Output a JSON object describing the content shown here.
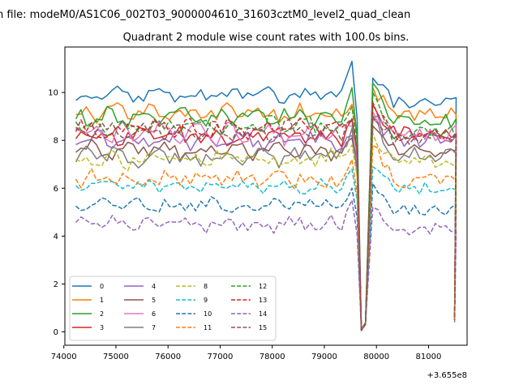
{
  "chart_data": {
    "type": "line",
    "suptitle": "n file: modeM0/AS1C06_002T03_9000004610_31603cztM0_level2_quad_clean",
    "title": "Quadrant 2 module wise count rates with 100.0s bins.",
    "xlabel": "",
    "ylabel": "",
    "x_offset_label": "+3.655e8",
    "xlim": [
      74020,
      81740
    ],
    "ylim": [
      -0.56,
      11.9
    ],
    "x_ticks": [
      74000,
      75000,
      76000,
      77000,
      78000,
      79000,
      80000,
      81000
    ],
    "x_tick_labels": [
      "74000",
      "75000",
      "76000",
      "77000",
      "78000",
      "79000",
      "80000",
      "81000"
    ],
    "y_ticks": [
      0,
      2,
      4,
      6,
      8,
      10
    ],
    "y_tick_labels": [
      "0",
      "2",
      "4",
      "6",
      "8",
      "10"
    ],
    "grid": false,
    "legend_position": "lower-left",
    "x_start": 74230,
    "x_step": 100,
    "pre_gap_points": 54,
    "post_gap_start": 79930,
    "post_gap_points": 17,
    "series": [
      {
        "name": "0",
        "color": "#1f77b4",
        "dash": "solid",
        "level": 9.9,
        "amp": 0.25,
        "peak": 11.3,
        "post": 10.6,
        "post2": 9.6,
        "end": 0.5
      },
      {
        "name": "1",
        "color": "#ff7f0e",
        "dash": "solid",
        "level": 9.1,
        "amp": 0.3,
        "peak": 9.5,
        "post": 10.2,
        "post2": 9.1,
        "end": 0.6
      },
      {
        "name": "2",
        "color": "#2ca02c",
        "dash": "solid",
        "level": 9.0,
        "amp": 0.3,
        "peak": 10.2,
        "post": 10.4,
        "post2": 8.8,
        "end": 0.5
      },
      {
        "name": "3",
        "color": "#d62728",
        "dash": "solid",
        "level": 8.2,
        "amp": 0.3,
        "peak": 8.9,
        "post": 9.5,
        "post2": 8.3,
        "end": 0.6
      },
      {
        "name": "4",
        "color": "#9467bd",
        "dash": "solid",
        "level": 8.0,
        "amp": 0.3,
        "peak": 8.2,
        "post": 9.0,
        "post2": 8.0,
        "end": 0.5
      },
      {
        "name": "5",
        "color": "#8c564b",
        "dash": "solid",
        "level": 7.6,
        "amp": 0.3,
        "peak": 8.1,
        "post": 8.6,
        "post2": 7.6,
        "end": 0.6
      },
      {
        "name": "6",
        "color": "#e377c2",
        "dash": "solid",
        "level": 8.3,
        "amp": 0.35,
        "peak": 8.6,
        "post": 9.2,
        "post2": 8.3,
        "end": 0.5
      },
      {
        "name": "7",
        "color": "#7f7f7f",
        "dash": "solid",
        "level": 7.3,
        "amp": 0.35,
        "peak": 8.5,
        "post": 8.9,
        "post2": 7.4,
        "end": 0.5
      },
      {
        "name": "8",
        "color": "#bcbd22",
        "dash": "dashed",
        "level": 7.2,
        "amp": 0.3,
        "peak": 7.8,
        "post": 8.3,
        "post2": 7.1,
        "end": 0.5
      },
      {
        "name": "9",
        "color": "#17becf",
        "dash": "dashed",
        "level": 6.1,
        "amp": 0.25,
        "peak": 6.8,
        "post": 6.9,
        "post2": 6.0,
        "end": 0.5
      },
      {
        "name": "10",
        "color": "#1f77b4",
        "dash": "dashed",
        "level": 5.3,
        "amp": 0.25,
        "peak": 6.0,
        "post": 6.2,
        "post2": 5.1,
        "end": 0.5
      },
      {
        "name": "11",
        "color": "#ff7f0e",
        "dash": "dashed",
        "level": 6.4,
        "amp": 0.3,
        "peak": 7.2,
        "post": 7.8,
        "post2": 6.3,
        "end": 0.5
      },
      {
        "name": "12",
        "color": "#2ca02c",
        "dash": "dashed",
        "level": 8.6,
        "amp": 0.3,
        "peak": 9.4,
        "post": 10.0,
        "post2": 8.3,
        "end": 0.5
      },
      {
        "name": "13",
        "color": "#d62728",
        "dash": "dashed",
        "level": 8.5,
        "amp": 0.3,
        "peak": 8.9,
        "post": 9.6,
        "post2": 8.2,
        "end": 0.6
      },
      {
        "name": "14",
        "color": "#9467bd",
        "dash": "dashed",
        "level": 4.5,
        "amp": 0.25,
        "peak": 5.5,
        "post": 5.2,
        "post2": 4.3,
        "end": 0.4
      },
      {
        "name": "15",
        "color": "#8c564b",
        "dash": "dashed",
        "level": 8.4,
        "amp": 0.3,
        "peak": 8.8,
        "post": 9.0,
        "post2": 8.1,
        "end": 0.5
      }
    ]
  }
}
